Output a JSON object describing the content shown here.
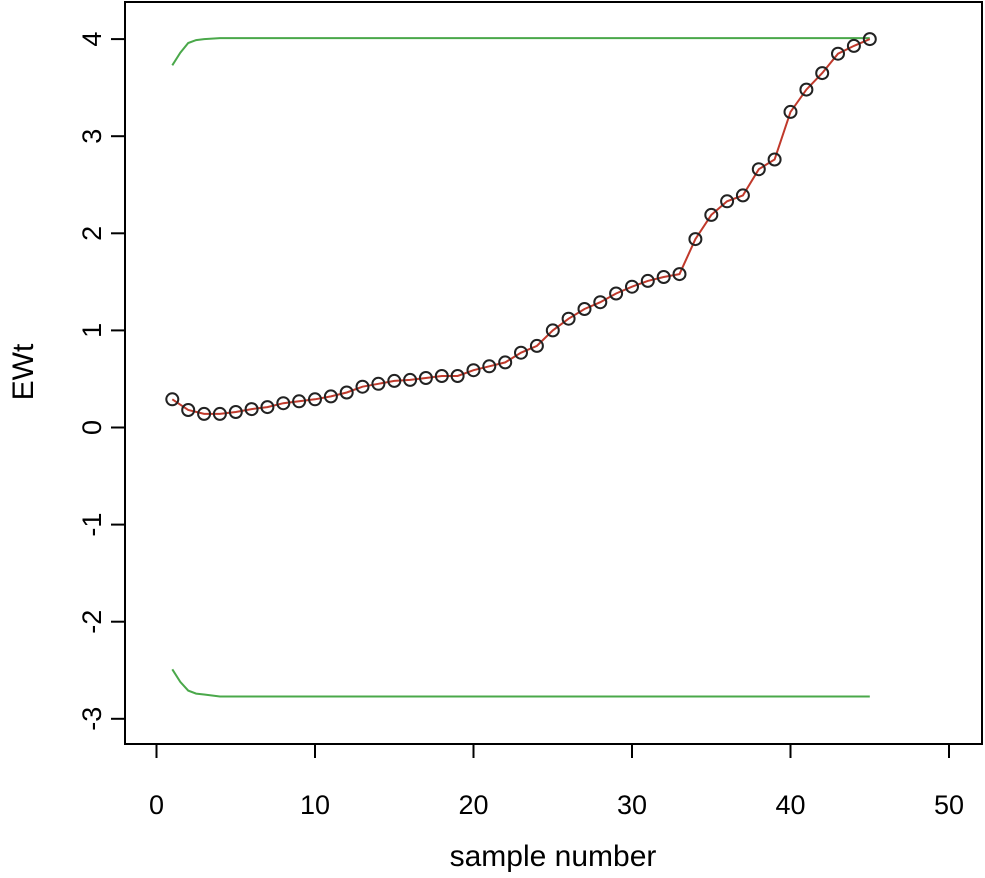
{
  "chart_data": {
    "type": "line",
    "title": "",
    "xlabel": "sample number",
    "ylabel": "EWt",
    "xlim": [
      -2,
      52
    ],
    "ylim": [
      -3.3,
      4.3
    ],
    "xticks": [
      0,
      10,
      20,
      30,
      40,
      50
    ],
    "yticks": [
      -3,
      -2,
      -1,
      0,
      1,
      2,
      3,
      4
    ],
    "grid": false,
    "colors": {
      "points": "#222222",
      "fit": "#c0392b",
      "limits": "#4aa84a"
    },
    "series": [
      {
        "name": "EWt",
        "style": "points",
        "x": [
          1,
          2,
          3,
          4,
          5,
          6,
          7,
          8,
          9,
          10,
          11,
          12,
          13,
          14,
          15,
          16,
          17,
          18,
          19,
          20,
          21,
          22,
          23,
          24,
          25,
          26,
          27,
          28,
          29,
          30,
          31,
          32,
          33,
          34,
          35,
          36,
          37,
          38,
          39,
          40,
          41,
          42,
          43,
          44,
          45
        ],
        "y": [
          0.29,
          0.18,
          0.14,
          0.14,
          0.16,
          0.19,
          0.21,
          0.25,
          0.27,
          0.29,
          0.32,
          0.36,
          0.42,
          0.45,
          0.48,
          0.49,
          0.51,
          0.53,
          0.53,
          0.59,
          0.63,
          0.67,
          0.77,
          0.84,
          1.0,
          1.12,
          1.22,
          1.29,
          1.38,
          1.45,
          1.51,
          1.55,
          1.58,
          1.94,
          2.19,
          2.33,
          2.39,
          2.66,
          2.76,
          3.25,
          3.48,
          3.65,
          3.85,
          3.93,
          4.0
        ]
      },
      {
        "name": "EWt fit",
        "style": "line",
        "x": [
          1,
          2,
          3,
          4,
          5,
          6,
          7,
          8,
          9,
          10,
          11,
          12,
          13,
          14,
          15,
          16,
          17,
          18,
          19,
          20,
          21,
          22,
          23,
          24,
          25,
          26,
          27,
          28,
          29,
          30,
          31,
          32,
          33,
          34,
          35,
          36,
          37,
          38,
          39,
          40,
          41,
          42,
          43,
          44,
          45
        ],
        "y": [
          0.29,
          0.18,
          0.14,
          0.14,
          0.16,
          0.19,
          0.21,
          0.25,
          0.27,
          0.29,
          0.32,
          0.36,
          0.42,
          0.45,
          0.48,
          0.49,
          0.51,
          0.53,
          0.53,
          0.59,
          0.63,
          0.67,
          0.77,
          0.84,
          1.0,
          1.12,
          1.22,
          1.29,
          1.38,
          1.45,
          1.51,
          1.55,
          1.58,
          1.94,
          2.19,
          2.33,
          2.39,
          2.66,
          2.76,
          3.25,
          3.48,
          3.65,
          3.85,
          3.93,
          4.0
        ]
      },
      {
        "name": "Upper limit",
        "style": "line",
        "x": [
          1,
          1.5,
          2,
          2.5,
          3,
          4,
          5,
          10,
          20,
          30,
          40,
          45
        ],
        "y": [
          3.73,
          3.86,
          3.96,
          3.99,
          4.0,
          4.01,
          4.01,
          4.01,
          4.01,
          4.01,
          4.01,
          4.01
        ]
      },
      {
        "name": "Lower limit",
        "style": "line",
        "x": [
          1,
          1.5,
          2,
          2.5,
          3,
          4,
          5,
          10,
          20,
          30,
          40,
          45
        ],
        "y": [
          -2.49,
          -2.62,
          -2.71,
          -2.74,
          -2.75,
          -2.77,
          -2.77,
          -2.77,
          -2.77,
          -2.77,
          -2.77,
          -2.77
        ]
      }
    ]
  }
}
